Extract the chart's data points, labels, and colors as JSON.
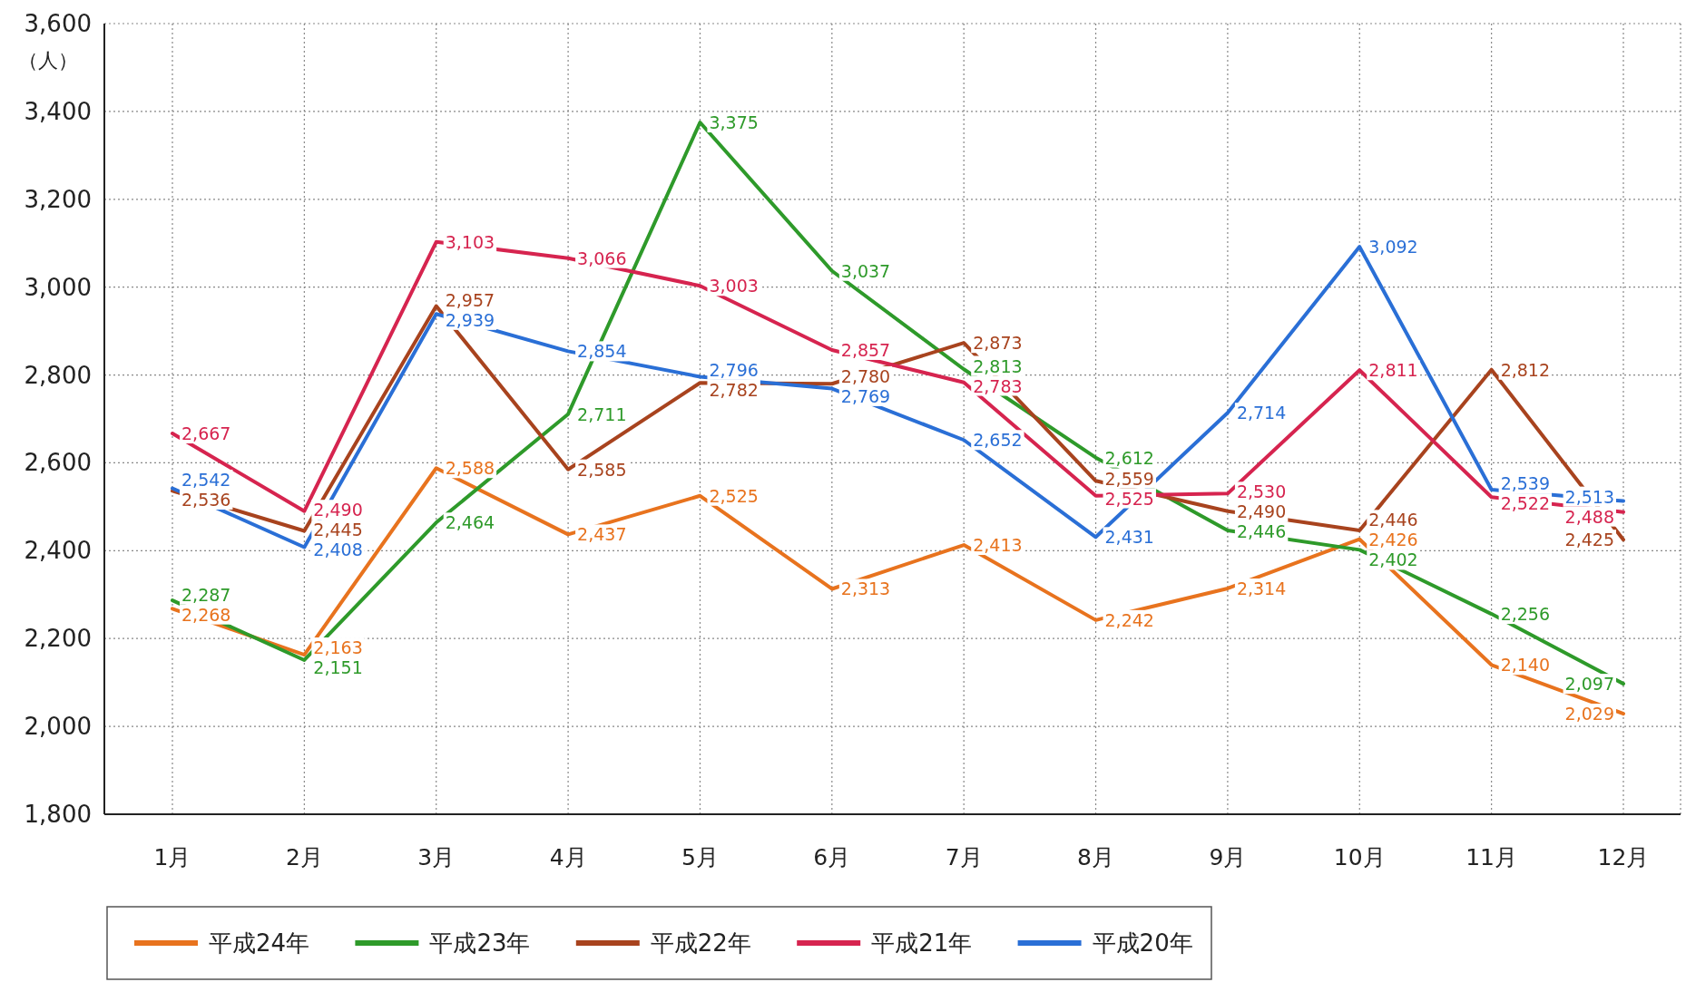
{
  "chart_data": {
    "type": "line",
    "ylabel": "（人）",
    "categories": [
      "1月",
      "2月",
      "3月",
      "4月",
      "5月",
      "6月",
      "7月",
      "8月",
      "9月",
      "10月",
      "11月",
      "12月"
    ],
    "series": [
      {
        "name": "平成24年",
        "color": "#e8731e",
        "values": [
          2268,
          2163,
          2588,
          2437,
          2525,
          2313,
          2413,
          2242,
          2314,
          2426,
          2140,
          2029
        ],
        "value_labels": [
          "2,268",
          "2,163",
          "2,588",
          "2,437",
          "2,525",
          "2,313",
          "2,413",
          "2,242",
          "2,314",
          "2,426",
          "2,140",
          "2,029"
        ]
      },
      {
        "name": "平成23年",
        "color": "#2e9a2a",
        "values": [
          2287,
          2151,
          2464,
          2711,
          3375,
          3037,
          2813,
          2612,
          2446,
          2402,
          2256,
          2097
        ],
        "value_labels": [
          "2,287",
          "2,151",
          "2,464",
          "2,711",
          "3,375",
          "3,037",
          "2,813",
          "2,612",
          "2,446",
          "2,402",
          "2,256",
          "2,097"
        ]
      },
      {
        "name": "平成22年",
        "color": "#a8431e",
        "values": [
          2536,
          2445,
          2957,
          2585,
          2782,
          2780,
          2873,
          2559,
          2490,
          2446,
          2812,
          2425
        ],
        "value_labels": [
          "2,536",
          "2,445",
          "2,957",
          "2,585",
          "2,782",
          "2,780",
          "2,873",
          "2,559",
          "2,490",
          "2,446",
          "2,812",
          "2,425"
        ]
      },
      {
        "name": "平成21年",
        "color": "#d6244f",
        "values": [
          2667,
          2490,
          3103,
          3066,
          3003,
          2857,
          2783,
          2525,
          2530,
          2811,
          2522,
          2488
        ],
        "value_labels": [
          "2,667",
          "2,490",
          "3,103",
          "3,066",
          "3,003",
          "2,857",
          "2,783",
          "2,525",
          "2,530",
          "2,811",
          "2,522",
          "2,488"
        ]
      },
      {
        "name": "平成20年",
        "color": "#2a6fd6",
        "values": [
          2542,
          2408,
          2939,
          2854,
          2796,
          2769,
          2652,
          2431,
          2714,
          3092,
          2539,
          2513
        ],
        "value_labels": [
          "2,542",
          "2,408",
          "2,939",
          "2,854",
          "2,796",
          "2,769",
          "2,652",
          "2,431",
          "2,714",
          "3,092",
          "2,539",
          "2,513"
        ]
      }
    ],
    "ylim": [
      1800,
      3600
    ],
    "yticks": [
      {
        "value": 1800,
        "label": "1,800"
      },
      {
        "value": 2000,
        "label": "2,000"
      },
      {
        "value": 2200,
        "label": "2,200"
      },
      {
        "value": 2400,
        "label": "2,400"
      },
      {
        "value": 2600,
        "label": "2,600"
      },
      {
        "value": 2800,
        "label": "2,800"
      },
      {
        "value": 3000,
        "label": "3,000"
      },
      {
        "value": 3200,
        "label": "3,200"
      },
      {
        "value": 3400,
        "label": "3,400"
      },
      {
        "value": 3600,
        "label": "3,600"
      }
    ],
    "grid": true,
    "legend": "bottom left"
  }
}
